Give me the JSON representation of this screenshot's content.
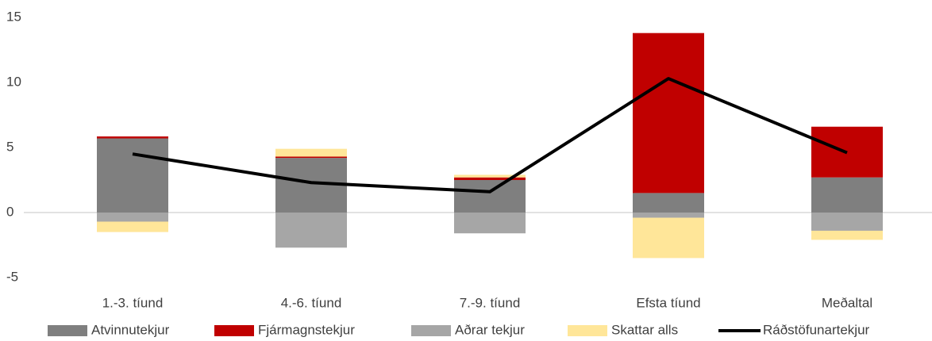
{
  "chart_data": {
    "type": "stacked_bar_line",
    "categories": [
      "1.-3. tíund",
      "4.-6. tíund",
      "7.-9. tíund",
      "Efsta tíund",
      "Meðaltal"
    ],
    "series": [
      {
        "name": "Atvinnutekjur",
        "color": "#7f7f7f",
        "kind": "bar",
        "values": [
          5.7,
          4.2,
          2.5,
          1.5,
          2.7
        ]
      },
      {
        "name": "Fjármagnstekjur",
        "color": "#c00000",
        "kind": "bar",
        "values": [
          0.15,
          0.1,
          0.2,
          12.3,
          3.9
        ]
      },
      {
        "name": "Aðrar tekjur",
        "color": "#a6a6a6",
        "kind": "bar",
        "values": [
          -0.7,
          -2.7,
          -1.6,
          -0.4,
          -1.4
        ]
      },
      {
        "name": "Skattar alls",
        "color": "#ffe699",
        "kind": "bar",
        "values": [
          -0.8,
          0.6,
          0.2,
          -3.1,
          -0.7
        ]
      },
      {
        "name": "Ráðstöfunartekjur",
        "color": "#000000",
        "kind": "line",
        "values": [
          4.5,
          2.3,
          1.6,
          10.3,
          4.6
        ]
      }
    ],
    "ylim": [
      -5,
      15
    ],
    "yticks": [
      -5,
      0,
      5,
      10,
      15
    ],
    "grid": false,
    "legend": "bottom"
  }
}
